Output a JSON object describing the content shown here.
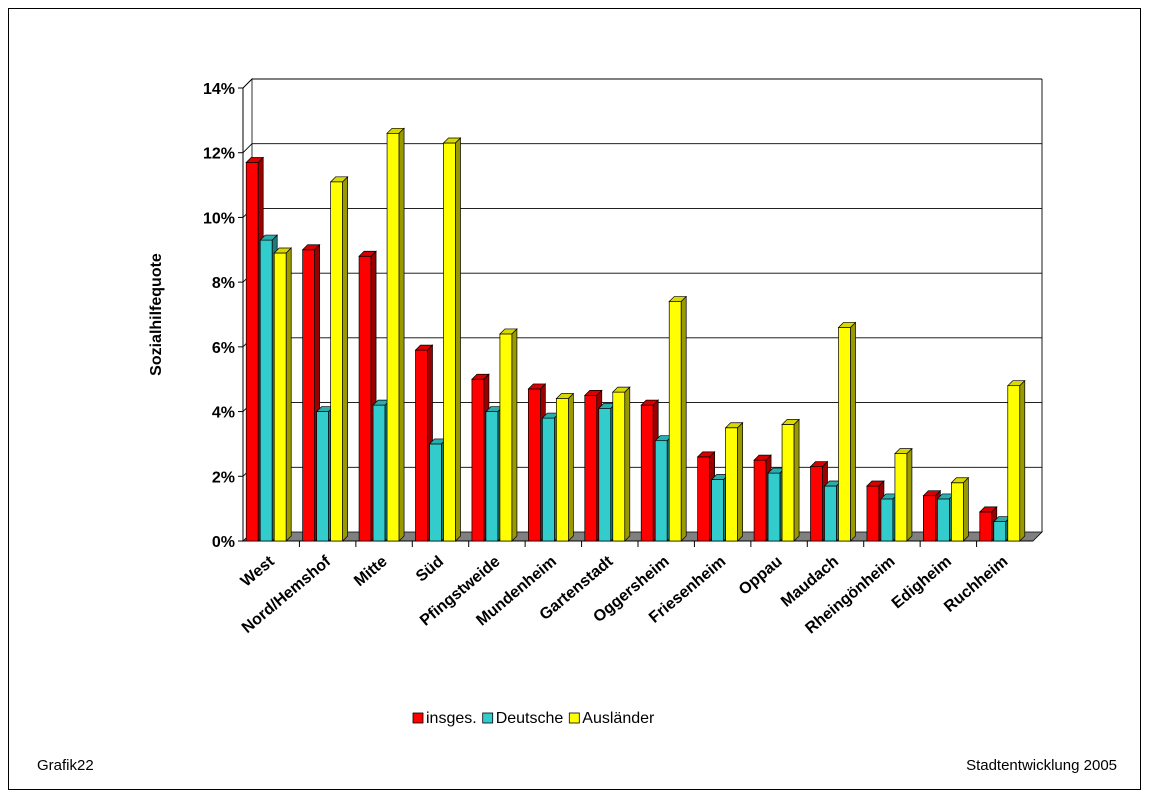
{
  "chart_data": {
    "type": "bar",
    "ylabel": "Sozialhilfequote",
    "ylim": [
      0,
      14
    ],
    "yticks": [
      "0%",
      "2%",
      "4%",
      "6%",
      "8%",
      "10%",
      "12%",
      "14%"
    ],
    "categories": [
      "West",
      "Nord/Hemshof",
      "Mitte",
      "Süd",
      "Pfingstweide",
      "Mundenheim",
      "Gartenstadt",
      "Oggersheim",
      "Friesenheim",
      "Oppau",
      "Maudach",
      "Rheingönheim",
      "Edigheim",
      "Ruchheim"
    ],
    "series": [
      {
        "name": "insges.",
        "color": "#ff0000",
        "values": [
          11.7,
          9.0,
          8.8,
          5.9,
          5.0,
          4.7,
          4.5,
          4.2,
          2.6,
          2.5,
          2.3,
          1.7,
          1.4,
          0.9
        ]
      },
      {
        "name": "Deutsche",
        "color": "#33cccc",
        "values": [
          9.3,
          4.0,
          4.2,
          3.0,
          4.0,
          3.8,
          4.1,
          3.1,
          1.9,
          2.1,
          1.7,
          1.3,
          1.3,
          0.6
        ]
      },
      {
        "name": "Ausländer",
        "color": "#ffff00",
        "values": [
          8.9,
          11.1,
          12.6,
          12.3,
          6.4,
          4.4,
          4.6,
          7.4,
          3.5,
          3.6,
          6.6,
          2.7,
          1.8,
          4.8
        ]
      }
    ],
    "grid": true,
    "legend": "bottom"
  },
  "footer": {
    "left": "Grafik22",
    "right": "Stadtentwicklung 2005"
  }
}
